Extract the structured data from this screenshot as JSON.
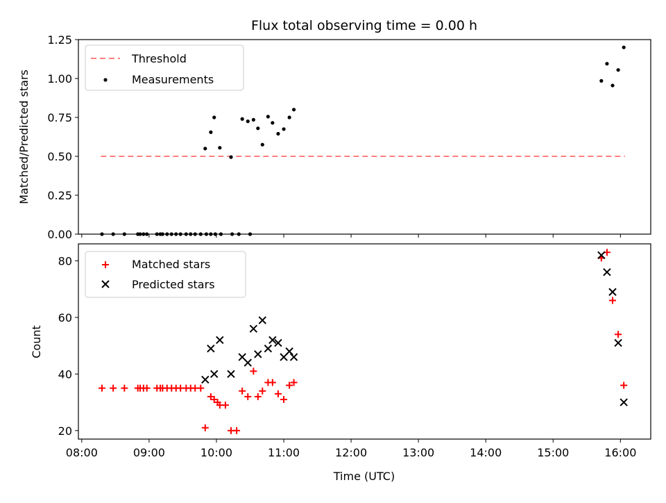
{
  "chart_data": [
    {
      "type": "scatter",
      "title": "Flux total observing time = 0.00 h",
      "ylabel": "Matched/Predicted stars",
      "xlabel": "",
      "ylim": [
        0,
        1.25
      ],
      "yticks": [
        "0.00",
        "0.25",
        "0.50",
        "0.75",
        "1.00",
        "1.25"
      ],
      "legend_position": "upper-left",
      "threshold": {
        "name": "Threshold",
        "value": 0.5,
        "x_start": "08:17",
        "x_end": "16:04",
        "color": "#ff7f7f"
      },
      "series": [
        {
          "name": "Measurements",
          "color": "#000000",
          "x": [
            "08:18",
            "08:28",
            "08:38",
            "08:50",
            "08:52",
            "08:55",
            "08:58",
            "09:07",
            "09:10",
            "09:12",
            "09:16",
            "09:20",
            "09:24",
            "09:28",
            "09:33",
            "09:37",
            "09:41",
            "09:46",
            "09:51",
            "09:55",
            "09:59",
            "10:04",
            "10:14",
            "10:20",
            "10:30",
            "09:50",
            "09:55",
            "09:58",
            "10:03",
            "10:13",
            "10:23",
            "10:28",
            "10:33",
            "10:37",
            "10:41",
            "10:46",
            "10:50",
            "10:55",
            "11:00",
            "11:05",
            "11:09",
            "15:43",
            "15:48",
            "15:53",
            "15:58",
            "16:03"
          ],
          "y": [
            0,
            0,
            0,
            0,
            0,
            0,
            0,
            0,
            0,
            0,
            0,
            0,
            0,
            0,
            0,
            0,
            0,
            0,
            0,
            0,
            0,
            0,
            0,
            0,
            0,
            0.55,
            0.655,
            0.75,
            0.555,
            0.495,
            0.74,
            0.725,
            0.735,
            0.68,
            0.575,
            0.755,
            0.715,
            0.645,
            0.675,
            0.75,
            0.8,
            0.985,
            1.095,
            0.955,
            1.055,
            1.2
          ]
        }
      ]
    },
    {
      "type": "scatter",
      "xlabel": "Time (UTC)",
      "ylabel": "Count",
      "xlim": [
        "07:57",
        "16:27"
      ],
      "ylim": [
        17,
        86
      ],
      "yticks": [
        "20",
        "40",
        "60",
        "80"
      ],
      "xticks": [
        "08:00",
        "09:00",
        "10:00",
        "11:00",
        "12:00",
        "13:00",
        "14:00",
        "15:00",
        "16:00"
      ],
      "legend_position": "upper-left",
      "series": [
        {
          "name": "Matched stars",
          "marker": "plus",
          "color": "#ff0000",
          "x": [
            "08:18",
            "08:28",
            "08:38",
            "08:50",
            "08:52",
            "08:55",
            "08:58",
            "09:07",
            "09:10",
            "09:12",
            "09:16",
            "09:20",
            "09:24",
            "09:28",
            "09:33",
            "09:37",
            "09:41",
            "09:46",
            "09:50",
            "09:55",
            "09:58",
            "10:01",
            "10:03",
            "10:08",
            "10:13",
            "10:18",
            "10:23",
            "10:28",
            "10:33",
            "10:37",
            "10:41",
            "10:46",
            "10:50",
            "10:55",
            "11:00",
            "11:05",
            "11:09",
            "15:43",
            "15:48",
            "15:53",
            "15:58",
            "16:03"
          ],
          "y": [
            35,
            35,
            35,
            35,
            35,
            35,
            35,
            35,
            35,
            35,
            35,
            35,
            35,
            35,
            35,
            35,
            35,
            35,
            21,
            32,
            31,
            30,
            29,
            29,
            20,
            20,
            34,
            32,
            41,
            32,
            34,
            37,
            37,
            33,
            31,
            36,
            37,
            81,
            83,
            66,
            54,
            36
          ]
        },
        {
          "name": "Predicted stars",
          "marker": "x",
          "color": "#000000",
          "x": [
            "09:50",
            "09:55",
            "09:58",
            "10:03",
            "10:13",
            "10:23",
            "10:28",
            "10:33",
            "10:37",
            "10:41",
            "10:46",
            "10:50",
            "10:55",
            "11:00",
            "11:05",
            "11:09",
            "15:43",
            "15:48",
            "15:53",
            "15:58",
            "16:03"
          ],
          "y": [
            38,
            49,
            40,
            52,
            40,
            46,
            44,
            56,
            47,
            59,
            49,
            52,
            51,
            46,
            48,
            46,
            82,
            76,
            69,
            51,
            30
          ]
        }
      ]
    }
  ]
}
